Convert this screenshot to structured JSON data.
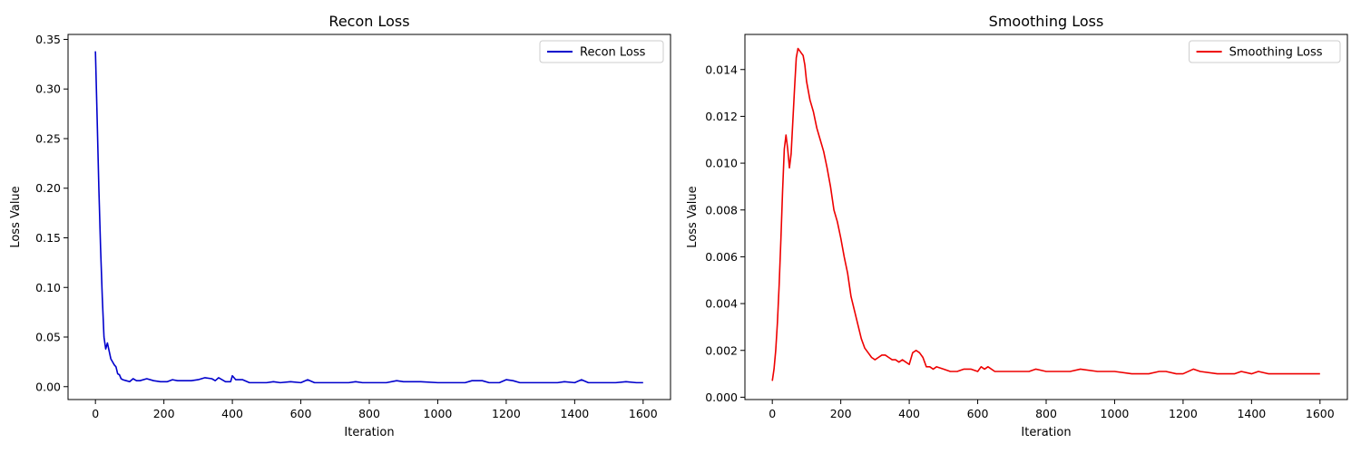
{
  "chart_data": [
    {
      "type": "line",
      "title": "Recon Loss",
      "xlabel": "Iteration",
      "ylabel": "Loss Value",
      "xlim": [
        -80,
        1680
      ],
      "ylim": [
        -0.013,
        0.355
      ],
      "xticks": [
        0,
        200,
        400,
        600,
        800,
        1000,
        1200,
        1400,
        1600
      ],
      "xtick_labels": [
        "0",
        "200",
        "400",
        "600",
        "800",
        "1000",
        "1200",
        "1400",
        "1600"
      ],
      "yticks": [
        0.0,
        0.05,
        0.1,
        0.15,
        0.2,
        0.25,
        0.3,
        0.35
      ],
      "ytick_labels": [
        "0.00",
        "0.05",
        "0.10",
        "0.15",
        "0.20",
        "0.25",
        "0.30",
        "0.35"
      ],
      "grid": false,
      "legend": "top-right",
      "series": [
        {
          "name": "Recon Loss",
          "color": "#0000cc",
          "x": [
            0,
            5,
            10,
            15,
            20,
            25,
            30,
            35,
            40,
            45,
            50,
            55,
            60,
            65,
            70,
            75,
            80,
            90,
            100,
            110,
            120,
            130,
            150,
            170,
            190,
            210,
            225,
            240,
            260,
            280,
            300,
            320,
            340,
            350,
            360,
            380,
            395,
            400,
            410,
            430,
            450,
            470,
            500,
            520,
            540,
            570,
            600,
            620,
            640,
            660,
            700,
            740,
            760,
            780,
            800,
            850,
            880,
            900,
            950,
            1000,
            1050,
            1080,
            1100,
            1130,
            1150,
            1180,
            1200,
            1220,
            1240,
            1260,
            1300,
            1350,
            1370,
            1400,
            1420,
            1440,
            1480,
            1520,
            1550,
            1580,
            1600
          ],
          "y": [
            0.338,
            0.27,
            0.2,
            0.14,
            0.09,
            0.05,
            0.038,
            0.044,
            0.036,
            0.028,
            0.025,
            0.022,
            0.02,
            0.013,
            0.012,
            0.008,
            0.007,
            0.006,
            0.005,
            0.008,
            0.006,
            0.006,
            0.008,
            0.006,
            0.005,
            0.005,
            0.007,
            0.006,
            0.006,
            0.006,
            0.007,
            0.009,
            0.008,
            0.006,
            0.009,
            0.005,
            0.005,
            0.011,
            0.007,
            0.007,
            0.004,
            0.004,
            0.004,
            0.005,
            0.004,
            0.005,
            0.004,
            0.007,
            0.004,
            0.004,
            0.004,
            0.004,
            0.005,
            0.004,
            0.004,
            0.004,
            0.006,
            0.005,
            0.005,
            0.004,
            0.004,
            0.004,
            0.006,
            0.006,
            0.004,
            0.004,
            0.007,
            0.006,
            0.004,
            0.004,
            0.004,
            0.004,
            0.005,
            0.004,
            0.007,
            0.004,
            0.004,
            0.004,
            0.005,
            0.004,
            0.004
          ]
        }
      ]
    },
    {
      "type": "line",
      "title": "Smoothing Loss",
      "xlabel": "Iteration",
      "ylabel": "Loss Value",
      "xlim": [
        -80,
        1680
      ],
      "ylim": [
        -0.0001,
        0.0155
      ],
      "xticks": [
        0,
        200,
        400,
        600,
        800,
        1000,
        1200,
        1400,
        1600
      ],
      "xtick_labels": [
        "0",
        "200",
        "400",
        "600",
        "800",
        "1000",
        "1200",
        "1400",
        "1600"
      ],
      "yticks": [
        0.0,
        0.002,
        0.004,
        0.006,
        0.008,
        0.01,
        0.012,
        0.014
      ],
      "ytick_labels": [
        "0.000",
        "0.002",
        "0.004",
        "0.006",
        "0.008",
        "0.010",
        "0.012",
        "0.014"
      ],
      "grid": false,
      "legend": "top-right",
      "series": [
        {
          "name": "Smoothing Loss",
          "color": "#ee0000",
          "x": [
            0,
            5,
            10,
            15,
            20,
            25,
            30,
            35,
            40,
            45,
            50,
            55,
            60,
            65,
            70,
            75,
            80,
            85,
            90,
            95,
            100,
            110,
            120,
            130,
            140,
            150,
            160,
            170,
            180,
            190,
            200,
            210,
            220,
            230,
            240,
            250,
            260,
            270,
            280,
            290,
            300,
            310,
            320,
            330,
            340,
            350,
            360,
            370,
            380,
            390,
            400,
            410,
            420,
            430,
            440,
            450,
            460,
            470,
            480,
            500,
            520,
            540,
            560,
            580,
            600,
            610,
            620,
            630,
            650,
            700,
            750,
            770,
            800,
            850,
            870,
            900,
            950,
            1000,
            1050,
            1080,
            1100,
            1130,
            1150,
            1180,
            1200,
            1230,
            1250,
            1300,
            1350,
            1370,
            1400,
            1420,
            1450,
            1500,
            1550,
            1600
          ],
          "y": [
            0.0007,
            0.0012,
            0.002,
            0.0032,
            0.0048,
            0.0067,
            0.0088,
            0.0106,
            0.0112,
            0.0106,
            0.0098,
            0.0104,
            0.0118,
            0.0132,
            0.0145,
            0.0149,
            0.0148,
            0.0147,
            0.0146,
            0.0142,
            0.0135,
            0.0127,
            0.0122,
            0.0115,
            0.011,
            0.0105,
            0.0098,
            0.009,
            0.008,
            0.0075,
            0.0068,
            0.006,
            0.0053,
            0.0043,
            0.0037,
            0.0031,
            0.0025,
            0.0021,
            0.0019,
            0.0017,
            0.0016,
            0.0017,
            0.0018,
            0.0018,
            0.0017,
            0.0016,
            0.0016,
            0.0015,
            0.0016,
            0.0015,
            0.0014,
            0.0019,
            0.002,
            0.0019,
            0.0017,
            0.0013,
            0.0013,
            0.0012,
            0.0013,
            0.0012,
            0.0011,
            0.0011,
            0.0012,
            0.0012,
            0.0011,
            0.0013,
            0.0012,
            0.0013,
            0.0011,
            0.0011,
            0.0011,
            0.0012,
            0.0011,
            0.0011,
            0.0011,
            0.0012,
            0.0011,
            0.0011,
            0.001,
            0.001,
            0.001,
            0.0011,
            0.0011,
            0.001,
            0.001,
            0.0012,
            0.0011,
            0.001,
            0.001,
            0.0011,
            0.001,
            0.0011,
            0.001,
            0.001,
            0.001,
            0.001
          ]
        }
      ]
    }
  ]
}
